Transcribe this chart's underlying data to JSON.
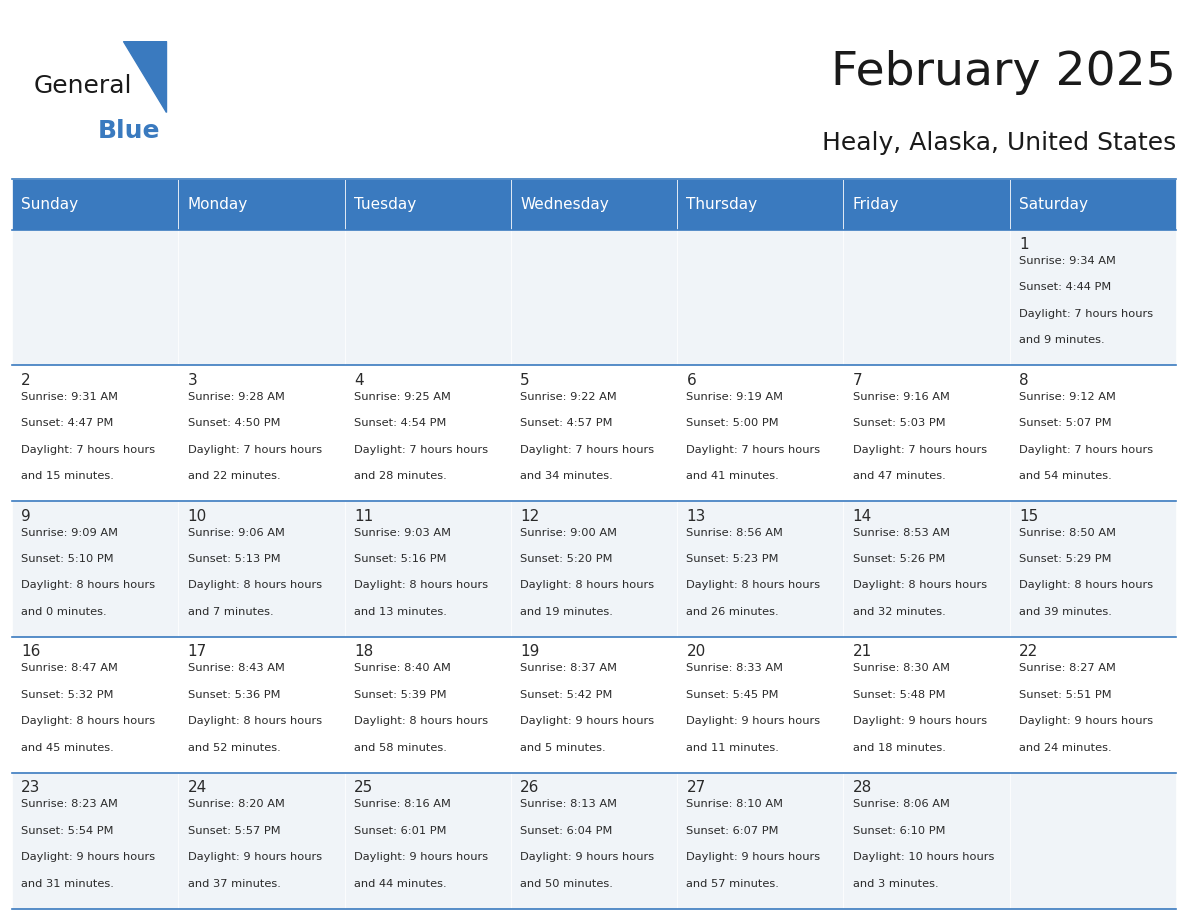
{
  "title": "February 2025",
  "subtitle": "Healy, Alaska, United States",
  "header_color": "#3a7abf",
  "header_text_color": "#ffffff",
  "cell_bg_even": "#f0f4f8",
  "cell_bg_odd": "#ffffff",
  "border_color": "#3a7abf",
  "day_headers": [
    "Sunday",
    "Monday",
    "Tuesday",
    "Wednesday",
    "Thursday",
    "Friday",
    "Saturday"
  ],
  "days": [
    {
      "day": 1,
      "col": 6,
      "row": 0,
      "sunrise": "9:34 AM",
      "sunset": "4:44 PM",
      "daylight": "7 hours and 9 minutes."
    },
    {
      "day": 2,
      "col": 0,
      "row": 1,
      "sunrise": "9:31 AM",
      "sunset": "4:47 PM",
      "daylight": "7 hours and 15 minutes."
    },
    {
      "day": 3,
      "col": 1,
      "row": 1,
      "sunrise": "9:28 AM",
      "sunset": "4:50 PM",
      "daylight": "7 hours and 22 minutes."
    },
    {
      "day": 4,
      "col": 2,
      "row": 1,
      "sunrise": "9:25 AM",
      "sunset": "4:54 PM",
      "daylight": "7 hours and 28 minutes."
    },
    {
      "day": 5,
      "col": 3,
      "row": 1,
      "sunrise": "9:22 AM",
      "sunset": "4:57 PM",
      "daylight": "7 hours and 34 minutes."
    },
    {
      "day": 6,
      "col": 4,
      "row": 1,
      "sunrise": "9:19 AM",
      "sunset": "5:00 PM",
      "daylight": "7 hours and 41 minutes."
    },
    {
      "day": 7,
      "col": 5,
      "row": 1,
      "sunrise": "9:16 AM",
      "sunset": "5:03 PM",
      "daylight": "7 hours and 47 minutes."
    },
    {
      "day": 8,
      "col": 6,
      "row": 1,
      "sunrise": "9:12 AM",
      "sunset": "5:07 PM",
      "daylight": "7 hours and 54 minutes."
    },
    {
      "day": 9,
      "col": 0,
      "row": 2,
      "sunrise": "9:09 AM",
      "sunset": "5:10 PM",
      "daylight": "8 hours and 0 minutes."
    },
    {
      "day": 10,
      "col": 1,
      "row": 2,
      "sunrise": "9:06 AM",
      "sunset": "5:13 PM",
      "daylight": "8 hours and 7 minutes."
    },
    {
      "day": 11,
      "col": 2,
      "row": 2,
      "sunrise": "9:03 AM",
      "sunset": "5:16 PM",
      "daylight": "8 hours and 13 minutes."
    },
    {
      "day": 12,
      "col": 3,
      "row": 2,
      "sunrise": "9:00 AM",
      "sunset": "5:20 PM",
      "daylight": "8 hours and 19 minutes."
    },
    {
      "day": 13,
      "col": 4,
      "row": 2,
      "sunrise": "8:56 AM",
      "sunset": "5:23 PM",
      "daylight": "8 hours and 26 minutes."
    },
    {
      "day": 14,
      "col": 5,
      "row": 2,
      "sunrise": "8:53 AM",
      "sunset": "5:26 PM",
      "daylight": "8 hours and 32 minutes."
    },
    {
      "day": 15,
      "col": 6,
      "row": 2,
      "sunrise": "8:50 AM",
      "sunset": "5:29 PM",
      "daylight": "8 hours and 39 minutes."
    },
    {
      "day": 16,
      "col": 0,
      "row": 3,
      "sunrise": "8:47 AM",
      "sunset": "5:32 PM",
      "daylight": "8 hours and 45 minutes."
    },
    {
      "day": 17,
      "col": 1,
      "row": 3,
      "sunrise": "8:43 AM",
      "sunset": "5:36 PM",
      "daylight": "8 hours and 52 minutes."
    },
    {
      "day": 18,
      "col": 2,
      "row": 3,
      "sunrise": "8:40 AM",
      "sunset": "5:39 PM",
      "daylight": "8 hours and 58 minutes."
    },
    {
      "day": 19,
      "col": 3,
      "row": 3,
      "sunrise": "8:37 AM",
      "sunset": "5:42 PM",
      "daylight": "9 hours and 5 minutes."
    },
    {
      "day": 20,
      "col": 4,
      "row": 3,
      "sunrise": "8:33 AM",
      "sunset": "5:45 PM",
      "daylight": "9 hours and 11 minutes."
    },
    {
      "day": 21,
      "col": 5,
      "row": 3,
      "sunrise": "8:30 AM",
      "sunset": "5:48 PM",
      "daylight": "9 hours and 18 minutes."
    },
    {
      "day": 22,
      "col": 6,
      "row": 3,
      "sunrise": "8:27 AM",
      "sunset": "5:51 PM",
      "daylight": "9 hours and 24 minutes."
    },
    {
      "day": 23,
      "col": 0,
      "row": 4,
      "sunrise": "8:23 AM",
      "sunset": "5:54 PM",
      "daylight": "9 hours and 31 minutes."
    },
    {
      "day": 24,
      "col": 1,
      "row": 4,
      "sunrise": "8:20 AM",
      "sunset": "5:57 PM",
      "daylight": "9 hours and 37 minutes."
    },
    {
      "day": 25,
      "col": 2,
      "row": 4,
      "sunrise": "8:16 AM",
      "sunset": "6:01 PM",
      "daylight": "9 hours and 44 minutes."
    },
    {
      "day": 26,
      "col": 3,
      "row": 4,
      "sunrise": "8:13 AM",
      "sunset": "6:04 PM",
      "daylight": "9 hours and 50 minutes."
    },
    {
      "day": 27,
      "col": 4,
      "row": 4,
      "sunrise": "8:10 AM",
      "sunset": "6:07 PM",
      "daylight": "9 hours and 57 minutes."
    },
    {
      "day": 28,
      "col": 5,
      "row": 4,
      "sunrise": "8:06 AM",
      "sunset": "6:10 PM",
      "daylight": "10 hours and 3 minutes."
    }
  ],
  "num_rows": 5,
  "logo_text_general": "General",
  "logo_text_blue": "Blue",
  "logo_color_general": "#1a1a1a",
  "logo_color_blue": "#3a7abf",
  "logo_triangle_color": "#3a7abf",
  "title_color": "#1a1a1a",
  "subtitle_color": "#1a1a1a",
  "day_number_color": "#2a2a2a",
  "cell_text_color": "#2a2a2a"
}
